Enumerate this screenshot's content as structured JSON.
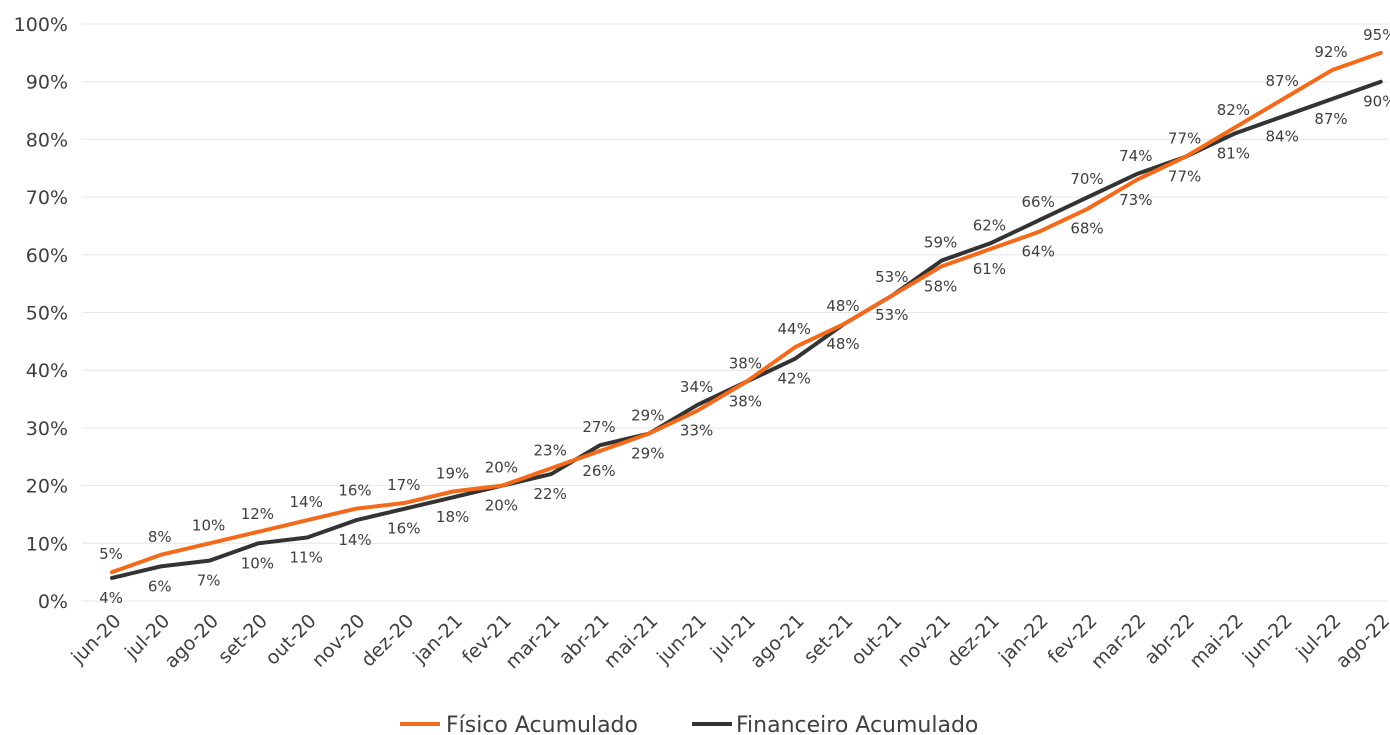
{
  "chart_data": {
    "type": "line",
    "categories": [
      "jun-20",
      "jul-20",
      "ago-20",
      "set-20",
      "out-20",
      "nov-20",
      "dez-20",
      "jan-21",
      "fev-21",
      "mar-21",
      "abr-21",
      "mai-21",
      "jun-21",
      "jul-21",
      "ago-21",
      "set-21",
      "out-21",
      "nov-21",
      "dez-21",
      "jan-22",
      "fev-22",
      "mar-22",
      "abr-22",
      "mai-22",
      "jun-22",
      "jul-22",
      "ago-22"
    ],
    "y_ticks": [
      "0%",
      "10%",
      "20%",
      "30%",
      "40%",
      "50%",
      "60%",
      "70%",
      "80%",
      "90%",
      "100%"
    ],
    "ylim": [
      0,
      100
    ],
    "grid": true,
    "legend_position": "bottom",
    "series": [
      {
        "name": "Físico Acumulado",
        "color": "#f26a1b",
        "values": [
          5,
          8,
          10,
          12,
          14,
          16,
          17,
          19,
          20,
          23,
          26,
          29,
          33,
          38,
          44,
          48,
          53,
          58,
          61,
          64,
          68,
          73,
          77,
          82,
          87,
          92,
          95
        ],
        "labels": [
          "5%",
          "8%",
          "10%",
          "12%",
          "14%",
          "16%",
          "17%",
          "19%",
          "20%",
          "23%",
          "26%",
          "29%",
          "33%",
          "38%",
          "44%",
          "48%",
          "53%",
          "58%",
          "61%",
          "64%",
          "68%",
          "73%",
          "77%",
          "82%",
          "87%",
          "92%",
          "95%"
        ]
      },
      {
        "name": "Financeiro Acumulado",
        "color": "#333333",
        "values": [
          4,
          6,
          7,
          10,
          11,
          14,
          16,
          18,
          20,
          22,
          27,
          29,
          34,
          38,
          42,
          48,
          53,
          59,
          62,
          66,
          70,
          74,
          77,
          81,
          84,
          87,
          90
        ],
        "labels": [
          "4%",
          "6%",
          "7%",
          "10%",
          "11%",
          "14%",
          "16%",
          "18%",
          "20%",
          "22%",
          "27%",
          "29%",
          "34%",
          "38%",
          "42%",
          "48%",
          "53%",
          "59%",
          "62%",
          "66%",
          "70%",
          "74%",
          "77%",
          "81%",
          "84%",
          "87%",
          "90%"
        ]
      }
    ]
  }
}
